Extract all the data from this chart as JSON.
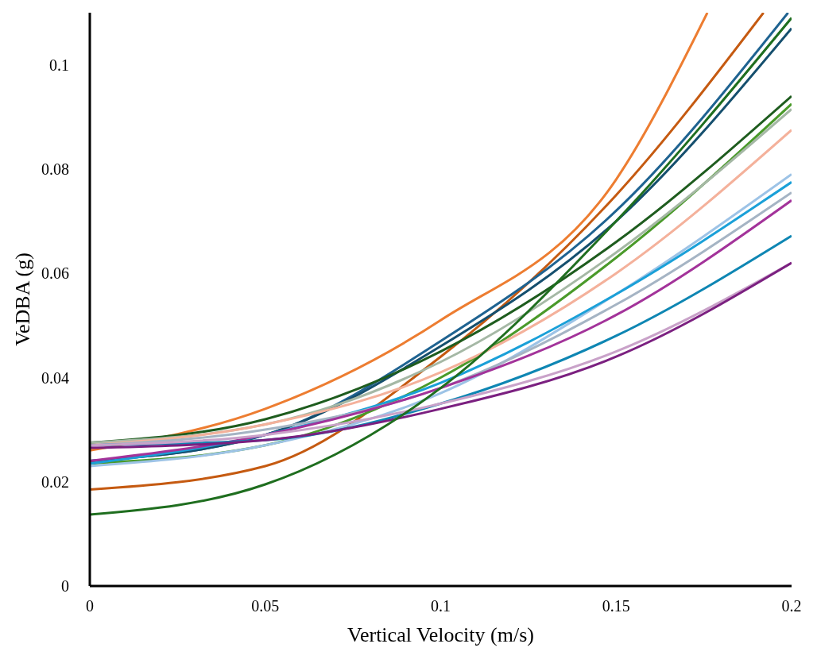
{
  "chart_data": {
    "type": "line",
    "xlabel": "Vertical Velocity (m/s)",
    "ylabel": "VeDBA (g)",
    "x": [
      0,
      0.05,
      0.1,
      0.15,
      0.2
    ],
    "xlim": [
      0,
      0.2
    ],
    "ylim": [
      0,
      0.11
    ],
    "xticks": [
      0,
      0.05,
      0.1,
      0.15,
      0.2
    ],
    "yticks": [
      0,
      0.02,
      0.04,
      0.06,
      0.08,
      0.1
    ],
    "grid": false,
    "legend": false,
    "marker": "none",
    "line_style": "solid",
    "series": [
      {
        "color": "#ed7d31",
        "x": [
          0,
          0.05,
          0.1,
          0.15,
          0.176
        ],
        "values": [
          0.026,
          0.034,
          0.051,
          0.078,
          0.11
        ]
      },
      {
        "color": "#c55a11",
        "x": [
          0,
          0.05,
          0.1,
          0.15,
          0.192
        ],
        "values": [
          0.0185,
          0.023,
          0.044,
          0.075,
          0.11
        ]
      },
      {
        "color": "#1f6391",
        "x": [
          0,
          0.05,
          0.1,
          0.15,
          0.199
        ],
        "values": [
          0.024,
          0.029,
          0.047,
          0.072,
          0.11
        ]
      },
      {
        "color": "#154f6e",
        "values": [
          0.024,
          0.029,
          0.046,
          0.07,
          0.107
        ]
      },
      {
        "color": "#1e5c1e",
        "values": [
          0.0275,
          0.032,
          0.045,
          0.066,
          0.094
        ]
      },
      {
        "color": "#4a9a2a",
        "values": [
          0.0235,
          0.027,
          0.04,
          0.063,
          0.0925
        ]
      },
      {
        "color": "#a5b8a5",
        "values": [
          0.0275,
          0.031,
          0.043,
          0.064,
          0.0915
        ]
      },
      {
        "color": "#f4b19b",
        "values": [
          0.027,
          0.031,
          0.041,
          0.06,
          0.0875
        ]
      },
      {
        "color": "#9dc3e6",
        "values": [
          0.023,
          0.027,
          0.037,
          0.056,
          0.079
        ]
      },
      {
        "color": "#1aa0d8",
        "values": [
          0.0235,
          0.029,
          0.039,
          0.056,
          0.0775
        ]
      },
      {
        "color": "#a5b4c4",
        "values": [
          0.027,
          0.03,
          0.038,
          0.054,
          0.0755
        ]
      },
      {
        "color": "#a3339a",
        "values": [
          0.024,
          0.029,
          0.038,
          0.052,
          0.074
        ]
      },
      {
        "color": "#0e86b3",
        "values": [
          0.027,
          0.028,
          0.035,
          0.048,
          0.0672
        ]
      },
      {
        "color": "#c9a2c9",
        "values": [
          0.027,
          0.029,
          0.035,
          0.045,
          0.062
        ]
      },
      {
        "color": "#7b2080",
        "values": [
          0.0265,
          0.028,
          0.034,
          0.044,
          0.062
        ]
      },
      {
        "color": "#1f6e1f",
        "values": [
          0.0137,
          0.0195,
          0.038,
          0.07,
          0.109
        ]
      }
    ]
  }
}
